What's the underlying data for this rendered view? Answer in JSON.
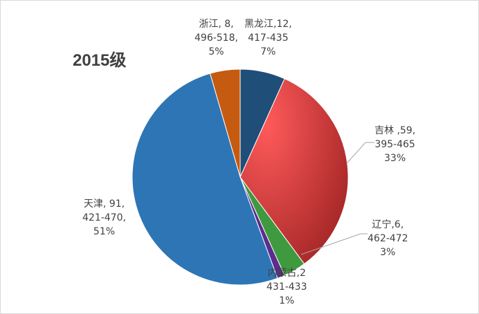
{
  "chart_data": {
    "type": "pie",
    "title": "2015级",
    "slices": [
      {
        "name": "黑龙江",
        "value": 12,
        "range": "417-435",
        "percent": "7%",
        "color": "#1f4e79",
        "label_line1": "黑龙江,12,",
        "label_line2": "417-435",
        "label_line3": "7%"
      },
      {
        "name": "吉林",
        "value": 59,
        "range": "395-465",
        "percent": "33%",
        "color": "#e84a4a",
        "label_line1": "吉林 ,59,",
        "label_line2": "395-465",
        "label_line3": "33%"
      },
      {
        "name": "辽宁",
        "value": 6,
        "range": "462-472",
        "percent": "3%",
        "color": "#3f9a3f",
        "label_line1": "辽宁,6,",
        "label_line2": "462-472",
        "label_line3": "3%"
      },
      {
        "name": "内蒙古",
        "value": 2,
        "range": "431-433",
        "percent": "1%",
        "color": "#5b2d8e",
        "label_line1": "内蒙古,2",
        "label_line2": "431-433",
        "label_line3": "1%"
      },
      {
        "name": "天津",
        "value": 91,
        "range": "421-470",
        "percent": "51%",
        "color": "#2e75b6",
        "label_line1": "天津, 91,",
        "label_line2": "421-470,",
        "label_line3": "51%"
      },
      {
        "name": "浙江",
        "value": 8,
        "range": "496-518",
        "percent": "5%",
        "color": "#c55a11",
        "label_line1": "浙江, 8,",
        "label_line2": "496-518,",
        "label_line3": "5%"
      }
    ]
  }
}
